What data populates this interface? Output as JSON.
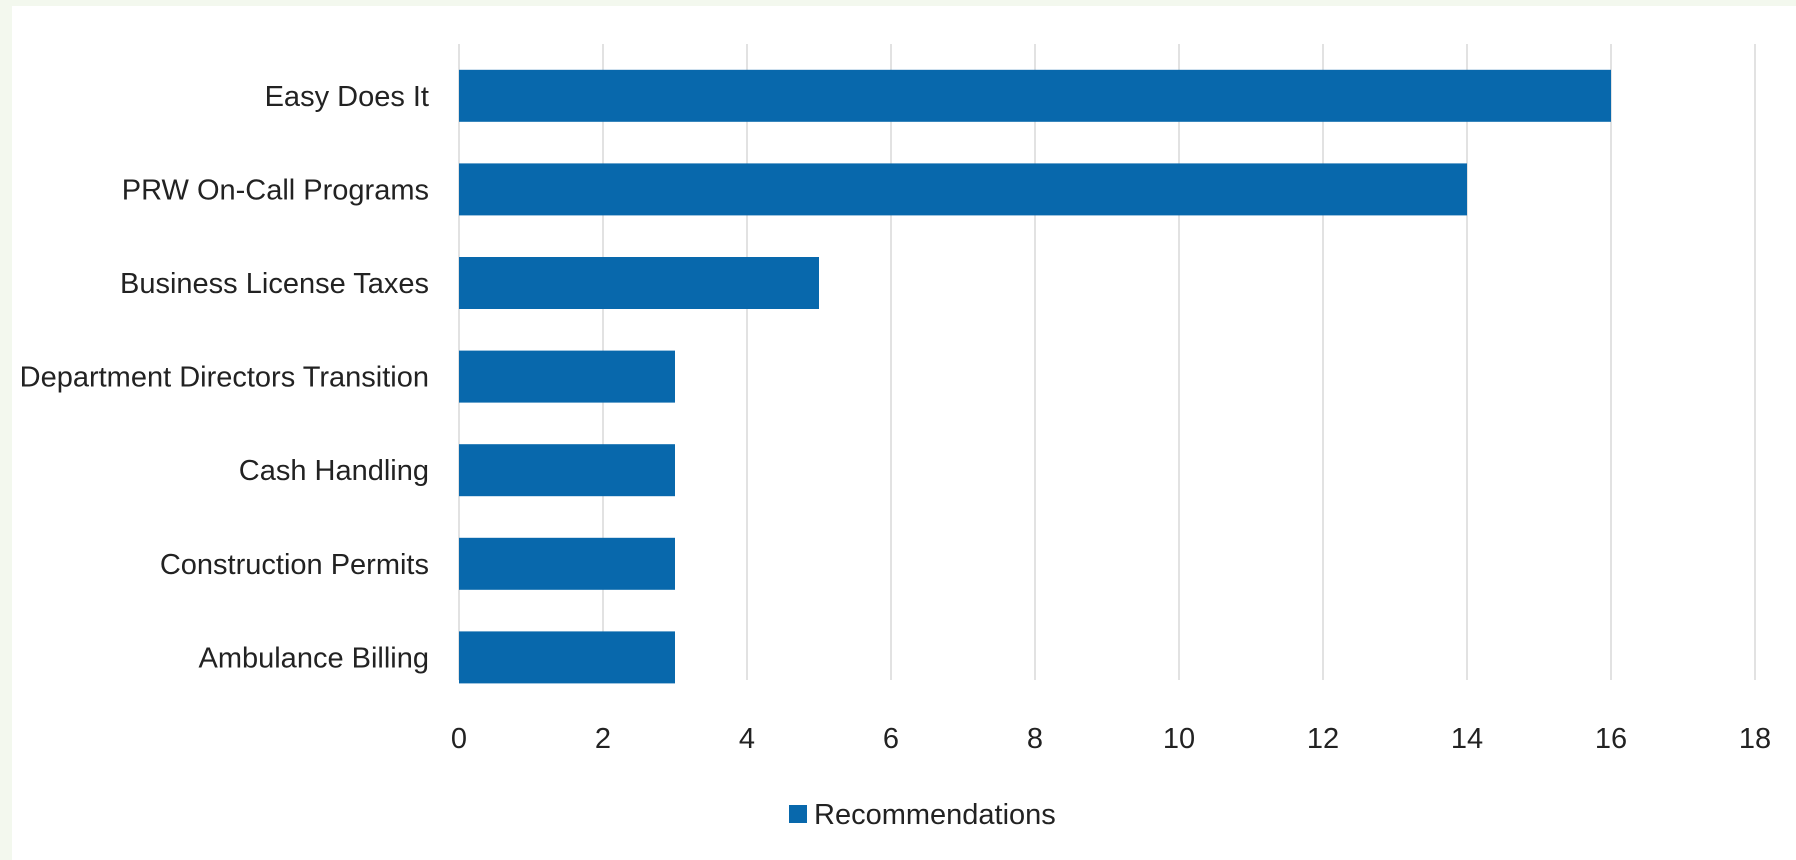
{
  "chart_data": {
    "type": "bar",
    "orientation": "horizontal",
    "categories": [
      "Easy Does It",
      "PRW On-Call Programs",
      "Business License Taxes",
      "Department Directors Transition",
      "Cash Handling",
      "Construction Permits",
      "Ambulance Billing"
    ],
    "series": [
      {
        "name": "Recommendations",
        "values": [
          16,
          14,
          5,
          3,
          3,
          3,
          3
        ],
        "color": "#0868ac"
      }
    ],
    "title": "",
    "xlabel": "",
    "ylabel": "",
    "xlim": [
      0,
      18
    ],
    "x_ticks": [
      "0",
      "2",
      "4",
      "6",
      "8",
      "10",
      "12",
      "14",
      "16",
      "18"
    ],
    "grid": "vertical",
    "legend_position": "bottom-center"
  }
}
